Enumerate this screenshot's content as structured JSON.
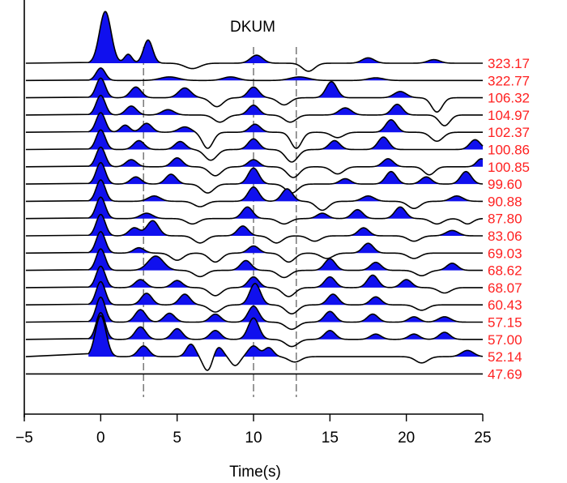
{
  "chart_data": {
    "type": "line",
    "title": "DKUM",
    "xlabel": "Time(s)",
    "xlim": [
      -5,
      25
    ],
    "xticks": [
      -5,
      0,
      5,
      10,
      15,
      20,
      25
    ],
    "reference_lines_x": [
      2.8,
      10.0,
      12.8
    ],
    "positive_fill_color": "#1010ee",
    "trace_color": "#000000",
    "label_color": "#ff2020",
    "traces": [
      {
        "label": "323.17",
        "pulses": [
          [
            0.3,
            2.9,
            0.38
          ],
          [
            1.8,
            0.5,
            0.25
          ],
          [
            3.1,
            1.3,
            0.3
          ],
          [
            6.0,
            -0.3,
            0.5
          ],
          [
            10.2,
            0.45,
            0.4
          ],
          [
            13.6,
            -0.45,
            0.4
          ],
          [
            17.5,
            0.3,
            0.4
          ],
          [
            21.8,
            0.2,
            0.4
          ]
        ]
      },
      {
        "label": "322.77",
        "pulses": [
          [
            0.0,
            0.7,
            0.3
          ],
          [
            4.5,
            0.2,
            0.6
          ],
          [
            8.5,
            0.2,
            0.5
          ],
          [
            13.0,
            0.2,
            0.6
          ],
          [
            18.0,
            0.15,
            0.5
          ]
        ]
      },
      {
        "label": "106.32",
        "pulses": [
          [
            0.0,
            1.1,
            0.3
          ],
          [
            2.3,
            0.6,
            0.35
          ],
          [
            5.5,
            0.55,
            0.4
          ],
          [
            7.6,
            -0.5,
            0.4
          ],
          [
            10.0,
            0.6,
            0.35
          ],
          [
            12.0,
            -0.4,
            0.4
          ],
          [
            15.1,
            0.9,
            0.35
          ],
          [
            19.6,
            0.35,
            0.4
          ],
          [
            22.0,
            -0.8,
            0.35
          ]
        ]
      },
      {
        "label": "104.97",
        "pulses": [
          [
            0.0,
            1.1,
            0.3
          ],
          [
            2.0,
            0.5,
            0.35
          ],
          [
            4.4,
            0.3,
            0.4
          ],
          [
            7.8,
            -0.4,
            0.4
          ],
          [
            10.0,
            0.55,
            0.35
          ],
          [
            12.4,
            -0.4,
            0.4
          ],
          [
            16.0,
            0.4,
            0.4
          ],
          [
            19.4,
            0.6,
            0.35
          ],
          [
            22.5,
            -0.6,
            0.35
          ]
        ]
      },
      {
        "label": "102.37",
        "pulses": [
          [
            0.0,
            1.1,
            0.3
          ],
          [
            1.6,
            0.4,
            0.3
          ],
          [
            3.0,
            0.5,
            0.35
          ],
          [
            5.5,
            0.3,
            0.4
          ],
          [
            7.0,
            -0.9,
            0.35
          ],
          [
            10.1,
            0.45,
            0.35
          ],
          [
            12.8,
            -0.9,
            0.35
          ],
          [
            15.5,
            -0.3,
            0.4
          ],
          [
            19.0,
            0.7,
            0.35
          ],
          [
            22.0,
            -0.5,
            0.4
          ]
        ]
      },
      {
        "label": "100.86",
        "pulses": [
          [
            0.0,
            1.1,
            0.3
          ],
          [
            2.5,
            0.5,
            0.35
          ],
          [
            5.2,
            0.45,
            0.35
          ],
          [
            7.2,
            -0.6,
            0.4
          ],
          [
            10.0,
            0.6,
            0.35
          ],
          [
            12.5,
            -0.7,
            0.4
          ],
          [
            15.3,
            0.5,
            0.35
          ],
          [
            18.5,
            0.7,
            0.35
          ],
          [
            24.5,
            0.55,
            0.35
          ]
        ]
      },
      {
        "label": "100.85",
        "pulses": [
          [
            0.0,
            1.1,
            0.3
          ],
          [
            2.0,
            0.4,
            0.35
          ],
          [
            5.0,
            0.5,
            0.35
          ],
          [
            7.5,
            -0.5,
            0.4
          ],
          [
            10.0,
            0.4,
            0.35
          ],
          [
            12.6,
            -0.6,
            0.4
          ],
          [
            15.5,
            -0.4,
            0.4
          ],
          [
            18.8,
            0.45,
            0.35
          ],
          [
            21.5,
            -0.45,
            0.35
          ],
          [
            24.9,
            0.45,
            0.3
          ]
        ]
      },
      {
        "label": "99.60",
        "pulses": [
          [
            0.0,
            1.2,
            0.3
          ],
          [
            2.3,
            0.4,
            0.35
          ],
          [
            4.6,
            0.55,
            0.35
          ],
          [
            7.0,
            -0.5,
            0.4
          ],
          [
            10.0,
            0.9,
            0.35
          ],
          [
            12.5,
            -0.5,
            0.4
          ],
          [
            16.0,
            0.3,
            0.35
          ],
          [
            19.0,
            0.7,
            0.35
          ],
          [
            21.3,
            0.4,
            0.35
          ],
          [
            23.9,
            0.7,
            0.35
          ]
        ]
      },
      {
        "label": "90.88",
        "pulses": [
          [
            0.0,
            1.2,
            0.3
          ],
          [
            3.5,
            0.3,
            0.4
          ],
          [
            6.5,
            -0.3,
            0.4
          ],
          [
            10.0,
            0.8,
            0.35
          ],
          [
            12.2,
            0.7,
            0.35
          ],
          [
            14.5,
            -0.5,
            0.4
          ],
          [
            17.5,
            0.3,
            0.4
          ],
          [
            20.5,
            -0.4,
            0.4
          ],
          [
            23.3,
            0.3,
            0.4
          ]
        ]
      },
      {
        "label": "87.80",
        "pulses": [
          [
            0.0,
            1.2,
            0.3
          ],
          [
            3.0,
            0.3,
            0.4
          ],
          [
            6.0,
            -0.3,
            0.4
          ],
          [
            9.6,
            0.65,
            0.35
          ],
          [
            12.0,
            -0.3,
            0.4
          ],
          [
            14.5,
            0.3,
            0.35
          ],
          [
            16.8,
            0.5,
            0.35
          ],
          [
            19.6,
            0.65,
            0.35
          ],
          [
            22.0,
            -0.3,
            0.4
          ],
          [
            24.0,
            -0.3,
            0.35
          ]
        ]
      },
      {
        "label": "83.06",
        "pulses": [
          [
            0.0,
            1.2,
            0.3
          ],
          [
            2.2,
            0.45,
            0.35
          ],
          [
            3.4,
            0.85,
            0.38
          ],
          [
            6.5,
            -0.4,
            0.4
          ],
          [
            9.3,
            0.55,
            0.35
          ],
          [
            11.5,
            -0.4,
            0.4
          ],
          [
            14.0,
            -0.3,
            0.4
          ],
          [
            17.2,
            0.45,
            0.35
          ],
          [
            20.5,
            -0.3,
            0.4
          ],
          [
            23.0,
            0.3,
            0.4
          ]
        ]
      },
      {
        "label": "69.03",
        "pulses": [
          [
            0.0,
            1.2,
            0.3
          ],
          [
            2.5,
            0.3,
            0.35
          ],
          [
            5.0,
            -0.4,
            0.4
          ],
          [
            7.5,
            -0.5,
            0.4
          ],
          [
            10.0,
            0.4,
            0.35
          ],
          [
            12.3,
            -0.5,
            0.4
          ],
          [
            14.8,
            -0.3,
            0.4
          ],
          [
            17.5,
            0.55,
            0.35
          ],
          [
            20.5,
            -0.3,
            0.4
          ]
        ]
      },
      {
        "label": "68.62",
        "pulses": [
          [
            0.0,
            1.2,
            0.3
          ],
          [
            3.6,
            0.8,
            0.5
          ],
          [
            6.5,
            -0.35,
            0.4
          ],
          [
            9.5,
            0.55,
            0.35
          ],
          [
            12.0,
            -0.4,
            0.4
          ],
          [
            15.0,
            0.65,
            0.35
          ],
          [
            18.0,
            0.45,
            0.35
          ],
          [
            21.0,
            -0.3,
            0.4
          ],
          [
            23.0,
            0.4,
            0.35
          ]
        ]
      },
      {
        "label": "68.07",
        "pulses": [
          [
            0.0,
            1.2,
            0.3
          ],
          [
            2.6,
            0.45,
            0.35
          ],
          [
            5.0,
            0.4,
            0.35
          ],
          [
            7.5,
            -0.45,
            0.4
          ],
          [
            10.0,
            0.6,
            0.35
          ],
          [
            12.3,
            -0.5,
            0.4
          ],
          [
            15.0,
            0.6,
            0.35
          ],
          [
            17.8,
            0.7,
            0.35
          ],
          [
            20.0,
            0.45,
            0.35
          ],
          [
            22.5,
            -0.3,
            0.4
          ]
        ]
      },
      {
        "label": "60.43",
        "pulses": [
          [
            0.0,
            1.3,
            0.3
          ],
          [
            3.0,
            0.65,
            0.35
          ],
          [
            5.5,
            0.6,
            0.35
          ],
          [
            7.5,
            -0.4,
            0.4
          ],
          [
            10.1,
            1.2,
            0.35
          ],
          [
            12.5,
            -0.5,
            0.4
          ],
          [
            15.2,
            0.6,
            0.35
          ],
          [
            18.0,
            0.45,
            0.35
          ],
          [
            21.0,
            -0.3,
            0.4
          ]
        ]
      },
      {
        "label": "57.15",
        "pulses": [
          [
            0.0,
            1.4,
            0.3
          ],
          [
            2.6,
            0.7,
            0.35
          ],
          [
            4.5,
            0.5,
            0.35
          ],
          [
            7.5,
            0.45,
            0.35
          ],
          [
            10.0,
            0.9,
            0.35
          ],
          [
            12.5,
            -0.4,
            0.4
          ],
          [
            15.0,
            0.6,
            0.35
          ],
          [
            17.8,
            0.45,
            0.35
          ],
          [
            20.5,
            0.3,
            0.35
          ],
          [
            22.5,
            0.3,
            0.4
          ]
        ]
      },
      {
        "label": "57.00",
        "pulses": [
          [
            0.0,
            1.5,
            0.3
          ],
          [
            2.6,
            0.7,
            0.35
          ],
          [
            5.0,
            0.6,
            0.35
          ],
          [
            7.5,
            0.5,
            0.35
          ],
          [
            10.0,
            1.2,
            0.35
          ],
          [
            12.5,
            -0.4,
            0.4
          ],
          [
            15.0,
            0.5,
            0.35
          ],
          [
            18.0,
            0.3,
            0.35
          ],
          [
            20.5,
            0.3,
            0.35
          ],
          [
            22.5,
            0.4,
            0.35
          ]
        ]
      },
      {
        "label": "52.14",
        "pulses": [
          [
            0.0,
            2.3,
            0.35
          ],
          [
            2.8,
            0.6,
            0.35
          ],
          [
            5.9,
            0.7,
            0.3
          ],
          [
            7.0,
            -0.8,
            0.3
          ],
          [
            7.7,
            0.55,
            0.3
          ],
          [
            8.8,
            -0.5,
            0.3
          ],
          [
            10.0,
            0.6,
            0.35
          ],
          [
            11.0,
            0.5,
            0.3
          ],
          [
            12.7,
            -0.3,
            0.4
          ],
          [
            21.0,
            -0.35,
            0.4
          ],
          [
            24.0,
            0.35,
            0.4
          ]
        ]
      },
      {
        "label": "47.69",
        "pulses": []
      }
    ]
  }
}
